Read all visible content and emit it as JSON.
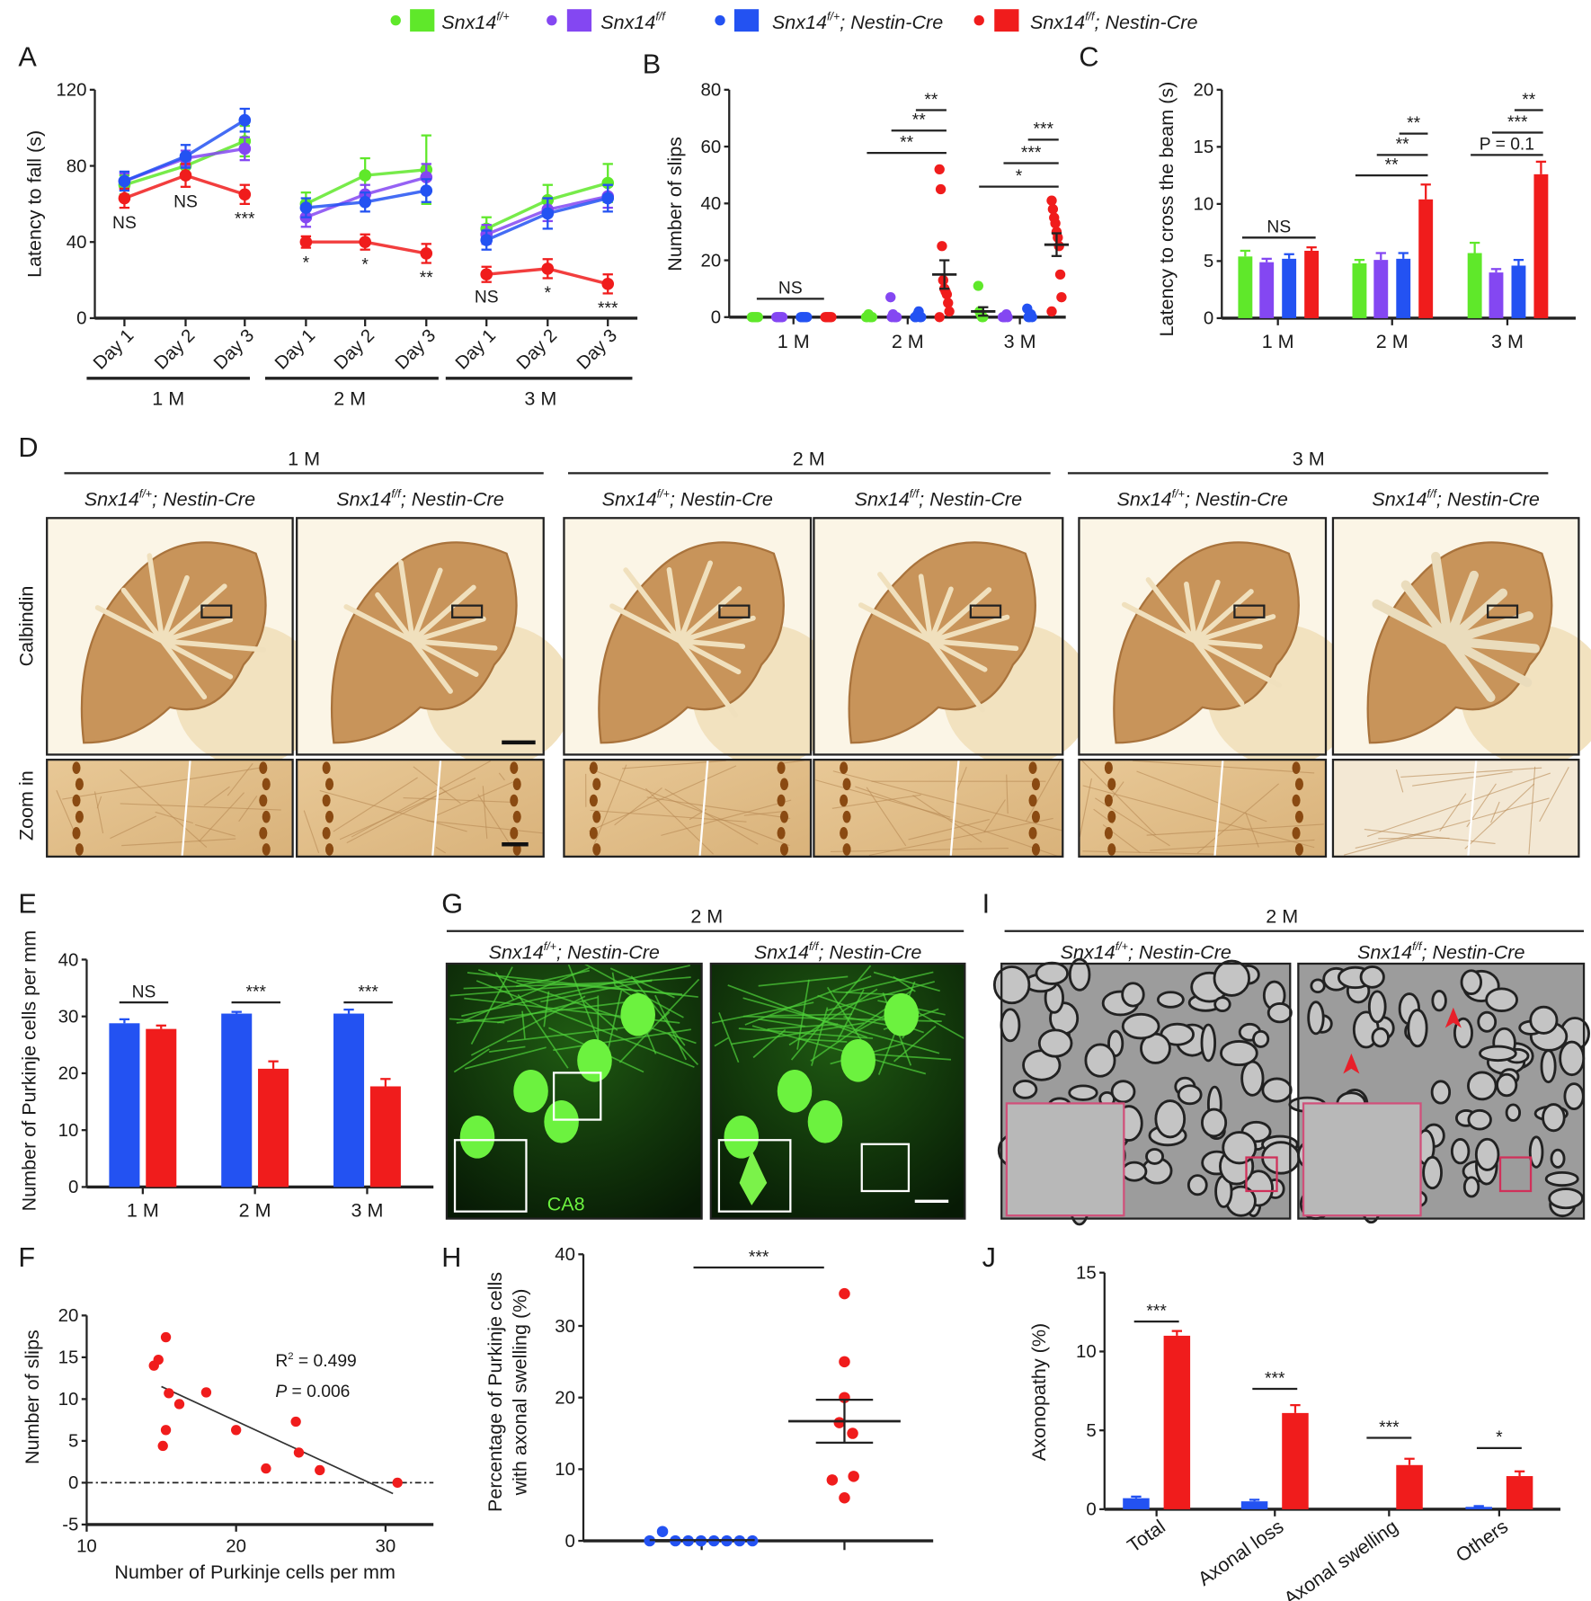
{
  "figure": {
    "legend": [
      {
        "gene": "Snx14",
        "genotype": "f/+",
        "suffix": "",
        "color": "#5fe82a"
      },
      {
        "gene": "Snx14",
        "genotype": "f/f",
        "suffix": "",
        "color": "#8447f2"
      },
      {
        "gene": "Snx14",
        "genotype": "f/+",
        "suffix": "; Nestin-Cre",
        "color": "#2352f2"
      },
      {
        "gene": "Snx14",
        "genotype": "f/f",
        "suffix": "; Nestin-Cre",
        "color": "#f01c1c"
      }
    ],
    "panel_letters": [
      "A",
      "B",
      "C",
      "D",
      "E",
      "F",
      "G",
      "H",
      "I",
      "J"
    ]
  },
  "panel_D": {
    "ages": [
      "1 M",
      "2 M",
      "3 M"
    ],
    "row_labels": [
      "Calbindin",
      "Zoom in"
    ]
  },
  "panel_G": {
    "age": "2 M",
    "stain_label": "CA8"
  },
  "panel_I": {
    "age": "2 M"
  },
  "chart_data": [
    {
      "panel": "A",
      "type": "line",
      "ylabel": "Latency to fall (s)",
      "ylim": [
        0,
        120
      ],
      "yticks": [
        "0",
        "40",
        "80",
        "120"
      ],
      "x_labels": [
        "Day 1",
        "Day 2",
        "Day 3"
      ],
      "groups": [
        "1 M",
        "2 M",
        "3 M"
      ],
      "series": [
        {
          "name": "Snx14 f/+",
          "values": [
            70,
            80,
            93,
            60,
            75,
            78,
            47,
            62,
            71
          ],
          "errors": [
            5,
            5,
            8,
            6,
            9,
            18,
            6,
            8,
            10
          ]
        },
        {
          "name": "Snx14 f/f",
          "values": [
            72,
            84,
            89,
            53,
            65,
            74,
            44,
            57,
            64
          ],
          "errors": [
            4,
            4,
            6,
            5,
            5,
            7,
            5,
            6,
            6
          ]
        },
        {
          "name": "Snx14 f/+; Nestin-Cre",
          "values": [
            72,
            85,
            104,
            58,
            61,
            67,
            41,
            55,
            63
          ],
          "errors": [
            5,
            6,
            6,
            5,
            5,
            6,
            5,
            8,
            7
          ]
        },
        {
          "name": "Snx14 f/f; Nestin-Cre",
          "values": [
            63,
            75,
            65,
            40,
            40,
            34,
            23,
            26,
            18
          ],
          "errors": [
            5,
            6,
            5,
            3,
            4,
            5,
            4,
            5,
            5
          ]
        }
      ],
      "significance": [
        "NS",
        "NS",
        "***",
        "*",
        "*",
        "**",
        "NS",
        "*",
        "***"
      ]
    },
    {
      "panel": "B",
      "type": "scatter",
      "ylabel": "Number of slips",
      "ylim": [
        0,
        80
      ],
      "yticks": [
        "0",
        "20",
        "40",
        "60",
        "80"
      ],
      "categories": [
        "1 M",
        "2 M",
        "3 M"
      ],
      "series": [
        {
          "name": "Snx14 f/+",
          "points": [
            [
              0,
              0,
              0,
              0,
              0,
              0
            ],
            [
              0,
              0,
              1,
              0,
              0,
              0
            ],
            [
              11,
              2,
              1,
              0,
              0
            ]
          ]
        },
        {
          "name": "Snx14 f/f",
          "points": [
            [
              0,
              0,
              0,
              0,
              0,
              0
            ],
            [
              7,
              0,
              1,
              0,
              0,
              0
            ],
            [
              0,
              0,
              0,
              1,
              0
            ]
          ]
        },
        {
          "name": "Snx14 f/+; Nestin-Cre",
          "points": [
            [
              0,
              0,
              0,
              0,
              0,
              0
            ],
            [
              0,
              0,
              1,
              2,
              0,
              0
            ],
            [
              3,
              0,
              0,
              1,
              0
            ]
          ]
        },
        {
          "name": "Snx14 f/f; Nestin-Cre",
          "points": [
            [
              0,
              0,
              0,
              0,
              0,
              0
            ],
            [
              52,
              45,
              25,
              13,
              10,
              9,
              8,
              5,
              2,
              0
            ],
            [
              41,
              38,
              35,
              33,
              30,
              28,
              25,
              15,
              7,
              2
            ]
          ]
        }
      ],
      "means": [
        {
          "category": 1,
          "series": 3,
          "mean": 15,
          "sem": 5
        },
        {
          "category": 2,
          "series": 3,
          "mean": 25.5,
          "sem": 4
        },
        {
          "category": 2,
          "series": 0,
          "mean": 2,
          "sem": 1.5
        }
      ],
      "significance": [
        [
          "NS"
        ],
        [
          "**",
          "**",
          "**"
        ],
        [
          "*",
          "***",
          "***"
        ]
      ]
    },
    {
      "panel": "C",
      "type": "bar",
      "ylabel": "Latency to cross the beam (s)",
      "ylim": [
        0,
        20
      ],
      "yticks": [
        "0",
        "5",
        "10",
        "15",
        "20"
      ],
      "categories": [
        "1 M",
        "2 M",
        "3 M"
      ],
      "series": [
        {
          "name": "Snx14 f/+",
          "values": [
            5.4,
            4.8,
            5.7
          ],
          "errors": [
            0.5,
            0.3,
            0.9
          ]
        },
        {
          "name": "Snx14 f/f",
          "values": [
            4.9,
            5.1,
            4.0
          ],
          "errors": [
            0.3,
            0.6,
            0.3
          ]
        },
        {
          "name": "Snx14 f/+; Nestin-Cre",
          "values": [
            5.2,
            5.2,
            4.6
          ],
          "errors": [
            0.4,
            0.5,
            0.5
          ]
        },
        {
          "name": "Snx14 f/f; Nestin-Cre",
          "values": [
            5.9,
            10.4,
            12.6
          ],
          "errors": [
            0.3,
            1.3,
            1.1
          ]
        }
      ],
      "significance": [
        [
          "NS"
        ],
        [
          "**",
          "**",
          "**"
        ],
        [
          "P = 0.1",
          "***",
          "**"
        ]
      ]
    },
    {
      "panel": "E",
      "type": "bar",
      "ylabel": "Number of Purkinje cells per mm",
      "ylim": [
        0,
        40
      ],
      "yticks": [
        "0",
        "10",
        "20",
        "30",
        "40"
      ],
      "categories": [
        "1 M",
        "2 M",
        "3 M"
      ],
      "series": [
        {
          "name": "Snx14 f/+; Nestin-Cre",
          "values": [
            28.8,
            30.5,
            30.5
          ],
          "errors": [
            0.7,
            0.3,
            0.7
          ]
        },
        {
          "name": "Snx14 f/f; Nestin-Cre",
          "values": [
            27.8,
            20.8,
            17.7
          ],
          "errors": [
            0.6,
            1.3,
            1.3
          ]
        }
      ],
      "significance": [
        "NS",
        "***",
        "***"
      ]
    },
    {
      "panel": "F",
      "type": "scatter",
      "xlabel": "Number of Purkinje cells per mm",
      "ylabel": "Number of slips",
      "xlim": [
        10,
        33
      ],
      "ylim": [
        -5,
        20
      ],
      "xticks": [
        "10",
        "20",
        "30"
      ],
      "yticks": [
        "-5",
        "0",
        "5",
        "10",
        "15",
        "20"
      ],
      "points": [
        [
          14.5,
          14
        ],
        [
          14.8,
          14.7
        ],
        [
          15.3,
          17.4
        ],
        [
          15.5,
          10.7
        ],
        [
          15.3,
          6.3
        ],
        [
          15.1,
          4.4
        ],
        [
          16.2,
          9.4
        ],
        [
          18,
          10.8
        ],
        [
          20,
          6.3
        ],
        [
          22,
          1.7
        ],
        [
          24,
          7.3
        ],
        [
          24.2,
          3.6
        ],
        [
          25.6,
          1.5
        ],
        [
          30.8,
          0
        ]
      ],
      "regression": {
        "x": [
          15,
          30.5
        ],
        "y": [
          11.5,
          -1.3
        ]
      },
      "stats": {
        "r2_label": "R",
        "r2_sup": "2",
        "r2_value": " = 0.499",
        "p_label": "P",
        "p_value": " = 0.006"
      }
    },
    {
      "panel": "H",
      "type": "scatter",
      "ylabel": [
        "Percentage of Purkinje cells",
        "with axonal swelling (%)"
      ],
      "ylim": [
        0,
        40
      ],
      "yticks": [
        "0",
        "10",
        "20",
        "30",
        "40"
      ],
      "series": [
        {
          "name": "Snx14 f/+; Nestin-Cre",
          "values": [
            0,
            1.3,
            0,
            0,
            0,
            0,
            0,
            0,
            0
          ],
          "mean": 0.1,
          "sem": 0.1
        },
        {
          "name": "Snx14 f/f; Nestin-Cre",
          "values": [
            34.5,
            25,
            20,
            16.5,
            15,
            9,
            8.5,
            6
          ],
          "mean": 16.7,
          "sem": 3
        }
      ],
      "significance": "***"
    },
    {
      "panel": "J",
      "type": "bar",
      "ylabel": "Axonopathy (%)",
      "ylim": [
        0,
        15
      ],
      "yticks": [
        "0",
        "5",
        "10",
        "15"
      ],
      "categories": [
        "Total",
        "Axonal loss",
        "Axonal swelling",
        "Others"
      ],
      "series": [
        {
          "name": "Snx14 f/+; Nestin-Cre",
          "values": [
            0.7,
            0.5,
            0,
            0.15
          ],
          "errors": [
            0.1,
            0.1,
            0,
            0.05
          ]
        },
        {
          "name": "Snx14 f/f; Nestin-Cre",
          "values": [
            11.0,
            6.1,
            2.8,
            2.1
          ],
          "errors": [
            0.3,
            0.5,
            0.4,
            0.3
          ]
        }
      ],
      "significance": [
        "***",
        "***",
        "***",
        "*"
      ]
    }
  ]
}
